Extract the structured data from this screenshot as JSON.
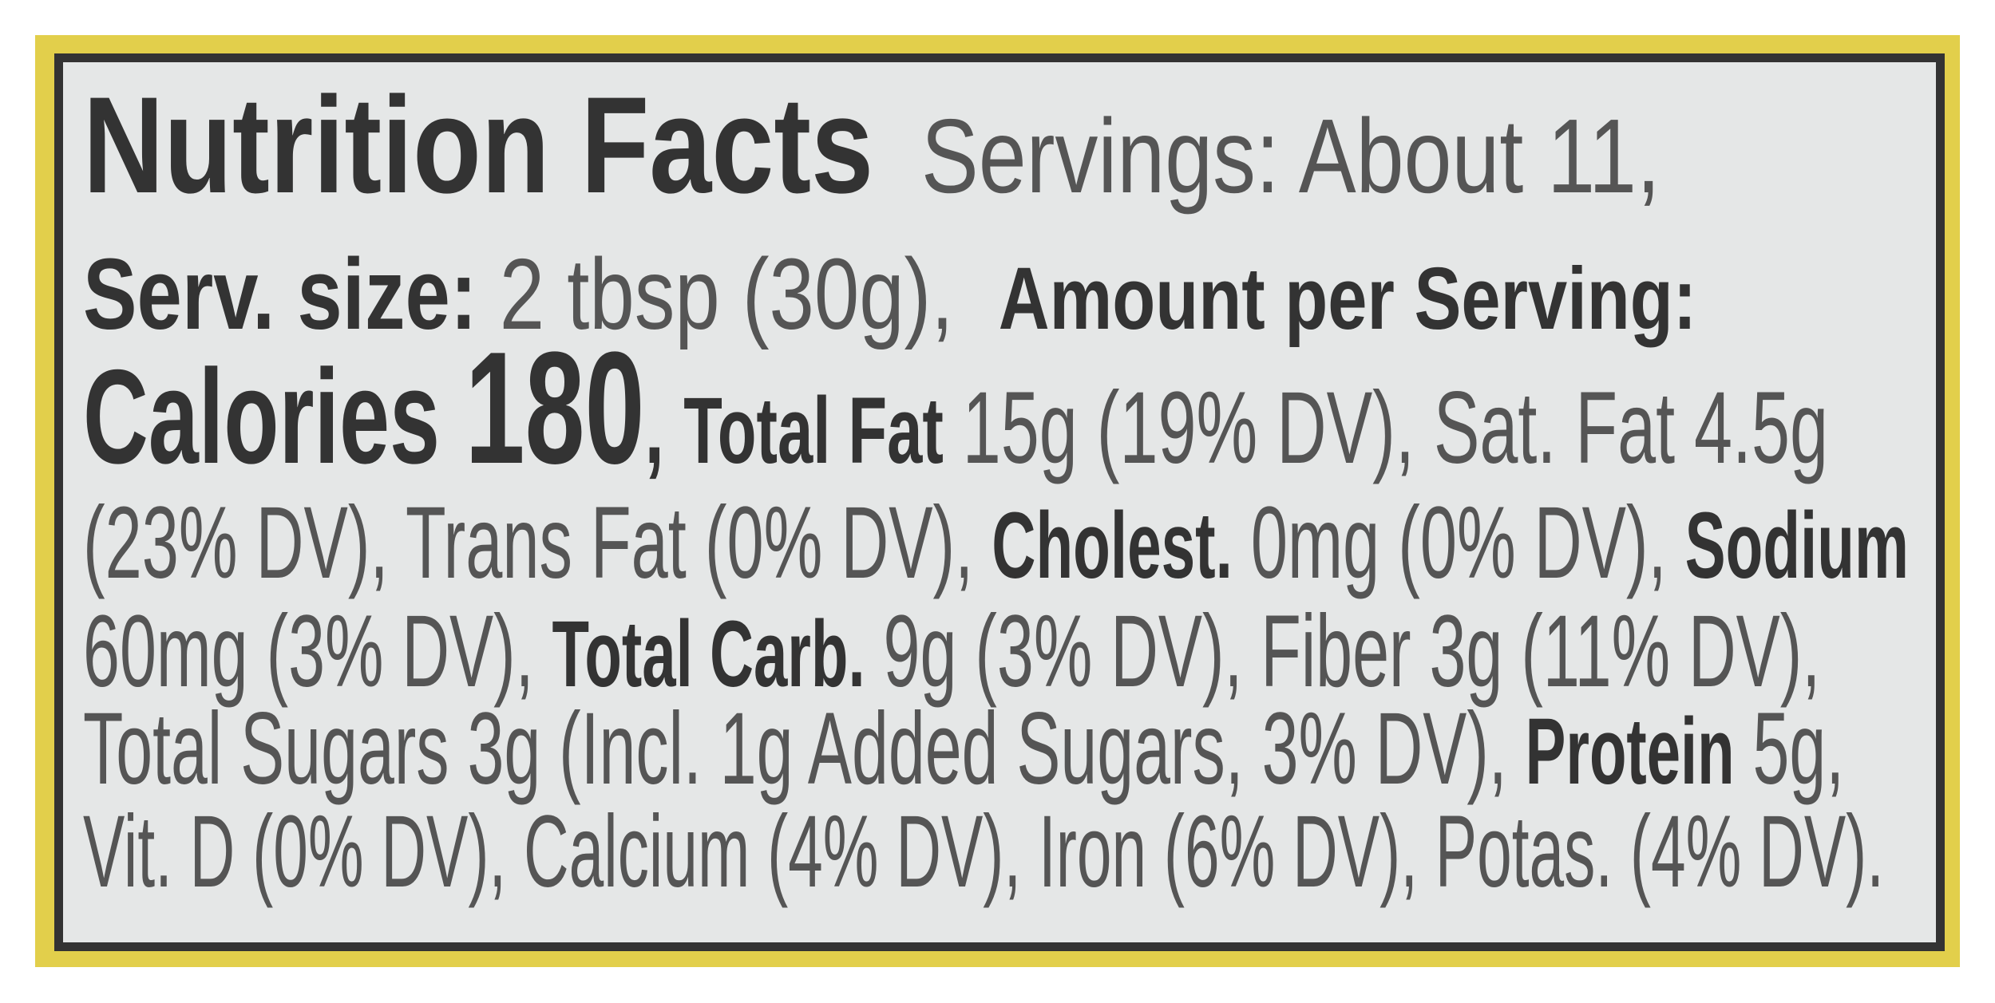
{
  "label": {
    "lines": [
      [
        {
          "t": "Nutrition Facts",
          "b": true,
          "s": 172
        },
        {
          "t": "  Servings: About 11,",
          "b": false,
          "s": 132
        }
      ],
      [
        {
          "t": "Serv. size:",
          "b": true,
          "s": 126
        },
        {
          "t": " 2 tbsp (30g),  ",
          "b": false,
          "s": 126
        },
        {
          "t": "Amount per Serving:",
          "b": true,
          "s": 110
        }
      ],
      [
        {
          "t": "Calories ",
          "b": true,
          "s": 168
        },
        {
          "t": "180",
          "b": true,
          "s": 200
        },
        {
          "t": ", ",
          "b": true,
          "s": 130
        },
        {
          "t": "Total Fat",
          "b": true,
          "s": 118
        },
        {
          "t": " 15g (19% DV), Sat. Fat 4.5g",
          "b": false,
          "s": 128
        }
      ],
      [
        {
          "t": "(23% DV), Trans Fat (0% DV), ",
          "b": false,
          "s": 128
        },
        {
          "t": "Cholest.",
          "b": true,
          "s": 118
        },
        {
          "t": " 0mg (0% DV), ",
          "b": false,
          "s": 128
        },
        {
          "t": "Sodium",
          "b": true,
          "s": 118
        }
      ],
      [
        {
          "t": "60mg (3% DV), ",
          "b": false,
          "s": 128
        },
        {
          "t": "Total Carb.",
          "b": true,
          "s": 118
        },
        {
          "t": " 9g (3% DV), Fiber 3g (11% DV),",
          "b": false,
          "s": 128
        }
      ],
      [
        {
          "t": "Total Sugars 3g (Incl. 1g Added Sugars, 3% DV), ",
          "b": false,
          "s": 128
        },
        {
          "t": "Protein",
          "b": true,
          "s": 118
        },
        {
          "t": " 5g,",
          "b": false,
          "s": 128
        }
      ],
      [
        {
          "t": "Vit. D (0% DV), Calcium (4% DV), Iron (6% DV), Potas. (4% DV).",
          "b": false,
          "s": 128
        }
      ]
    ]
  },
  "colors": {
    "frame": "#e2cf4b",
    "border": "#333333",
    "panel": "#e5e7e7",
    "text": "#555555",
    "bold_text": "#333333"
  }
}
